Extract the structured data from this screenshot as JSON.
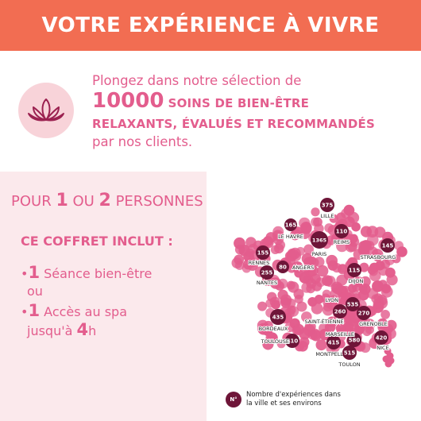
{
  "header": {
    "title": "VOTRE EXPÉRIENCE À VIVRE"
  },
  "intro": {
    "line1": "Plongez dans notre sélection de",
    "count": "10000",
    "line2_rest": "SOINS DE BIEN-ÊTRE",
    "line3": "RELAXANTS, ÉVALUÉS ET RECOMMANDÉS",
    "line4": "par nos clients.",
    "icon": "lotus-icon"
  },
  "offer": {
    "pour_prefix": "POUR ",
    "pour_n1": "1",
    "pour_mid": " OU ",
    "pour_n2": "2",
    "pour_suffix": " PERSONNES",
    "includes_title": "CE COFFRET INCLUT :",
    "item1_num": "1",
    "item1_line1": " Séance bien-être",
    "item1_line2": "ou",
    "item2_num": "1",
    "item2_line1": " Accès au spa",
    "item2_line2_prefix": "jusqu'à ",
    "item2_line2_num": "4",
    "item2_line2_suffix": "h"
  },
  "map": {
    "colors": {
      "dot": "#e35d8d",
      "marker": "#6e1538",
      "header": "#f26d52",
      "accent": "#e35d8d"
    },
    "markers": [
      {
        "city": "LILLE",
        "count": "375"
      },
      {
        "city": "LE HAVRE",
        "count": "165"
      },
      {
        "city": "REIMS",
        "count": "110"
      },
      {
        "city": "PARIS",
        "count": "1365"
      },
      {
        "city": "STRASBOURG",
        "count": "145"
      },
      {
        "city": "RENNES",
        "count": "155"
      },
      {
        "city": "ANGERS",
        "count": "80"
      },
      {
        "city": "NANTES",
        "count": "255"
      },
      {
        "city": "DIJON",
        "count": "115"
      },
      {
        "city": "LYON",
        "count": "535"
      },
      {
        "city": "SAINT-ÉTIENNE",
        "count": "260"
      },
      {
        "city": "GRENOBLE",
        "count": "270"
      },
      {
        "city": "BORDEAUX",
        "count": "435"
      },
      {
        "city": "TOULOUSE",
        "count": "410"
      },
      {
        "city": "MONTPELLIER",
        "count": "415"
      },
      {
        "city": "MARSEILLE",
        "count": "580"
      },
      {
        "city": "NICE",
        "count": "420"
      },
      {
        "city": "TOULON",
        "count": "515"
      }
    ],
    "legend_symbol": "N°",
    "legend_line1": "Nombre d'expériences dans",
    "legend_line2": "la ville et ses environs"
  }
}
